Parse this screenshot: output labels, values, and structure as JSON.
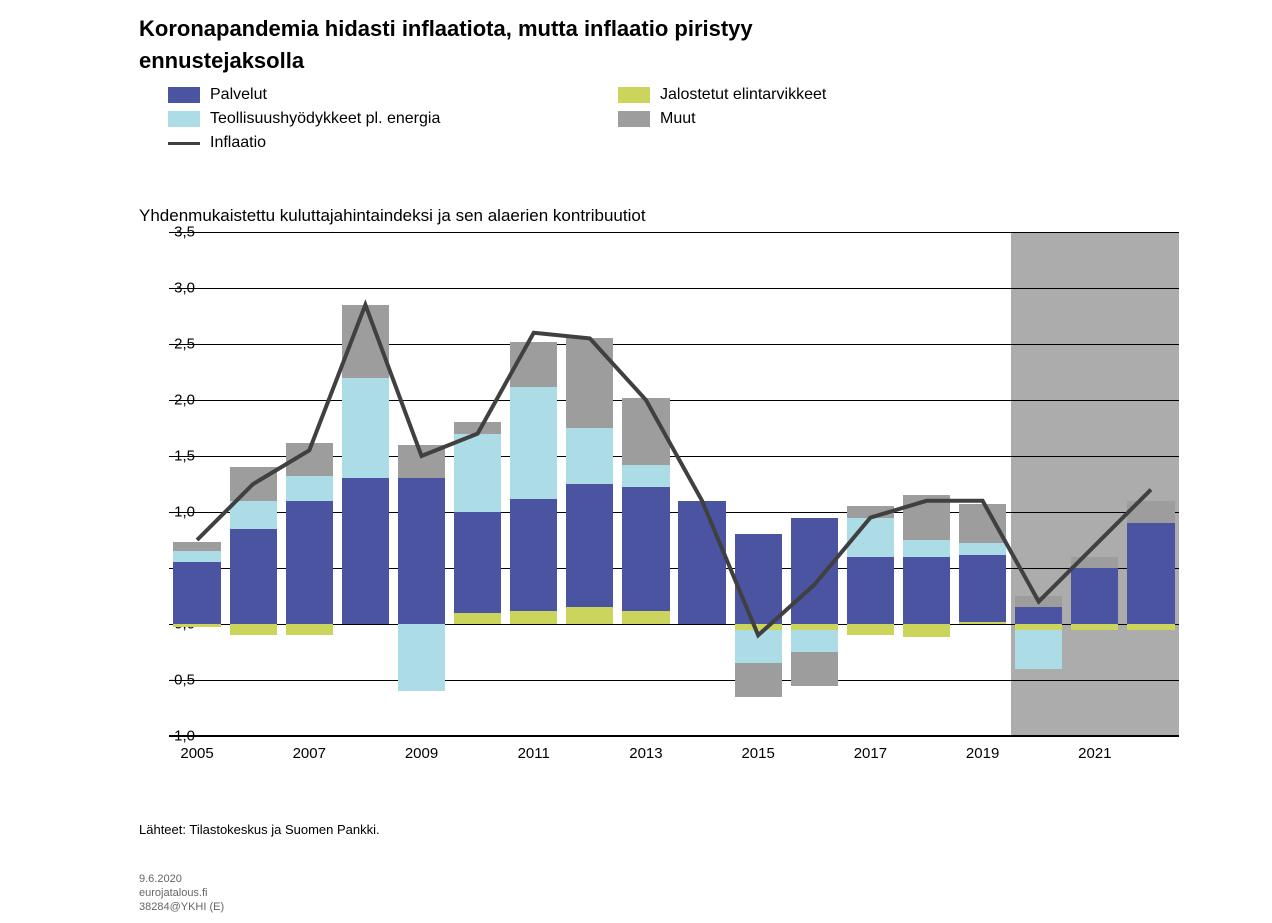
{
  "title_line1": "Koronapandemia hidasti inflaatiota, mutta inflaatio piristyy",
  "title_line2": "ennustejaksolla",
  "subtitle": "Yhdenmukaistettu kuluttajahintaindeksi ja sen alaerien kontribuutiot",
  "legend": [
    {
      "type": "box",
      "color": "#4a54a0",
      "label": "Palvelut"
    },
    {
      "type": "box",
      "color": "#cbd45b",
      "label": "Jalostetut elintarvikkeet"
    },
    {
      "type": "box",
      "color": "#acdde6",
      "label": "Teollisuushyödykkeet pl. energia"
    },
    {
      "type": "box",
      "color": "#9d9d9d",
      "label": "Muut"
    },
    {
      "type": "line",
      "color": "#404040",
      "width": 3,
      "label": "Inflaatio"
    }
  ],
  "chart": {
    "type": "stacked-bar-with-line",
    "y_min": -1.0,
    "y_max": 3.5,
    "y_ticks": [
      -1.0,
      -0.5,
      0.0,
      0.5,
      1.0,
      1.5,
      2.0,
      2.5,
      3.0,
      3.5
    ],
    "grid_color": "#000000",
    "background_color": "#ffffff",
    "forecast_shade_color": "#9d9d9d",
    "bar_width_ratio": 0.84,
    "title_fontsize": 22,
    "label_fontsize": 15,
    "legend_fontsize": 16,
    "line": {
      "color": "#404040",
      "width": 4
    },
    "categories_x": [
      "2005",
      "",
      "2007",
      "",
      "2009",
      "",
      "2011",
      "",
      "2013",
      "",
      "2015",
      "",
      "2017",
      "",
      "2019",
      "",
      "2021",
      ""
    ],
    "forecast_start_index": 15,
    "series_colors": {
      "palvelut": "#4a54a0",
      "jalost": "#cbd45b",
      "teoll": "#acdde6",
      "muut": "#9d9d9d"
    },
    "series_order_positive": [
      "jalost",
      "palvelut",
      "teoll",
      "muut"
    ],
    "series_order_negative": [
      "jalost",
      "teoll",
      "muut"
    ],
    "data": [
      {
        "jalost": -0.03,
        "palvelut": 0.55,
        "teoll": 0.1,
        "muut": 0.08,
        "line": 0.75
      },
      {
        "jalost": -0.1,
        "palvelut": 0.85,
        "teoll": 0.25,
        "muut": 0.3,
        "line": 1.25
      },
      {
        "jalost": -0.1,
        "palvelut": 1.1,
        "teoll": 0.22,
        "muut": 0.3,
        "line": 1.55
      },
      {
        "jalost": 0.0,
        "palvelut": 1.3,
        "teoll": 0.9,
        "muut": 0.65,
        "line": 2.85
      },
      {
        "jalost": 0.0,
        "palvelut": 1.3,
        "teoll": -0.6,
        "muut": 0.3,
        "line": 1.5
      },
      {
        "jalost": 0.1,
        "palvelut": 0.9,
        "teoll": 0.7,
        "muut": 0.1,
        "line": 1.7
      },
      {
        "jalost": 0.12,
        "palvelut": 1.0,
        "teoll": 1.0,
        "muut": 0.4,
        "line": 2.6
      },
      {
        "jalost": 0.15,
        "palvelut": 1.1,
        "teoll": 0.5,
        "muut": 0.8,
        "line": 2.55
      },
      {
        "jalost": 0.12,
        "palvelut": 1.1,
        "teoll": 0.2,
        "muut": 0.6,
        "line": 2.0
      },
      {
        "jalost": 0.0,
        "palvelut": 1.1,
        "teoll": 0.0,
        "muut": 0.0,
        "line": 1.1
      },
      {
        "jalost": -0.05,
        "palvelut": 0.8,
        "teoll": -0.3,
        "muut": -0.3,
        "line": -0.1
      },
      {
        "jalost": -0.05,
        "palvelut": 0.95,
        "teoll": -0.2,
        "muut": -0.3,
        "line": 0.35
      },
      {
        "jalost": -0.1,
        "palvelut": 0.6,
        "teoll": 0.35,
        "muut": 0.1,
        "line": 0.95
      },
      {
        "jalost": -0.12,
        "palvelut": 0.6,
        "teoll": 0.15,
        "muut": 0.4,
        "line": 1.1
      },
      {
        "jalost": 0.02,
        "palvelut": 0.6,
        "teoll": 0.1,
        "muut": 0.35,
        "line": 1.1
      },
      {
        "jalost": -0.05,
        "palvelut": 0.15,
        "teoll": -0.35,
        "muut": 0.1,
        "line": 0.2
      },
      {
        "jalost": -0.05,
        "palvelut": 0.5,
        "teoll": 0.0,
        "muut": 0.1,
        "line": 0.7
      },
      {
        "jalost": -0.05,
        "palvelut": 0.9,
        "teoll": 0.0,
        "muut": 0.2,
        "line": 1.2
      }
    ]
  },
  "sources": "Lähteet: Tilastokeskus ja Suomen Pankki.",
  "footer_date": "9.6.2020",
  "footer_site": "eurojatalous.fi",
  "footer_code": "38284@YKHI (E)"
}
